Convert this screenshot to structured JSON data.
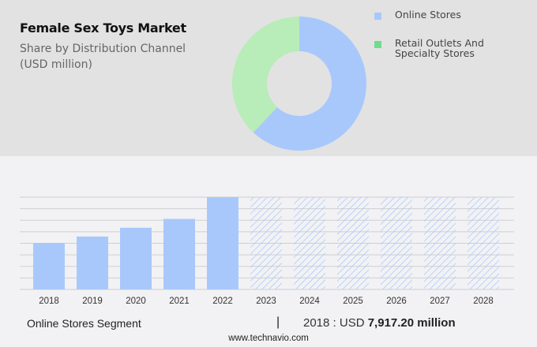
{
  "header": {
    "title": "Female Sex Toys Market",
    "subtitle_line1": "Share by Distribution Channel",
    "subtitle_line2": "(USD million)"
  },
  "legend": [
    {
      "label": "Online Stores",
      "color": "#a8c8fc"
    },
    {
      "label_line1": "Retail Outlets And",
      "label_line2": "Specialty Stores",
      "color": "#6fdc8c"
    }
  ],
  "footer": {
    "segment": "Online Stores Segment",
    "separator": "|",
    "value_prefix": "2018 : USD ",
    "value_bold": "7,917.20 million",
    "source": "www.technavio.com"
  },
  "chart_data": [
    {
      "type": "pie",
      "variant": "donut",
      "title": "Share by Distribution Channel (USD million)",
      "categories": [
        "Online Stores",
        "Retail Outlets And Specialty Stores"
      ],
      "values": [
        62,
        38
      ],
      "unit": "approx. % share",
      "colors": [
        "#a8c8fc",
        "#b8ecb8"
      ]
    },
    {
      "type": "bar",
      "title": "Online Stores Segment",
      "categories": [
        "2018",
        "2019",
        "2020",
        "2021",
        "2022",
        "2023",
        "2024",
        "2025",
        "2026",
        "2027",
        "2028"
      ],
      "values": [
        7917.2,
        9000,
        10500,
        12000,
        15700,
        null,
        null,
        null,
        null,
        null,
        null
      ],
      "forecast_years": [
        "2023",
        "2024",
        "2025",
        "2026",
        "2027",
        "2028"
      ],
      "forecast_style": "hatched",
      "annotation": "2018 : USD 7,917.20 million",
      "ylabel": "USD million",
      "grid": true,
      "bar_color": "#a8c8fc"
    }
  ]
}
